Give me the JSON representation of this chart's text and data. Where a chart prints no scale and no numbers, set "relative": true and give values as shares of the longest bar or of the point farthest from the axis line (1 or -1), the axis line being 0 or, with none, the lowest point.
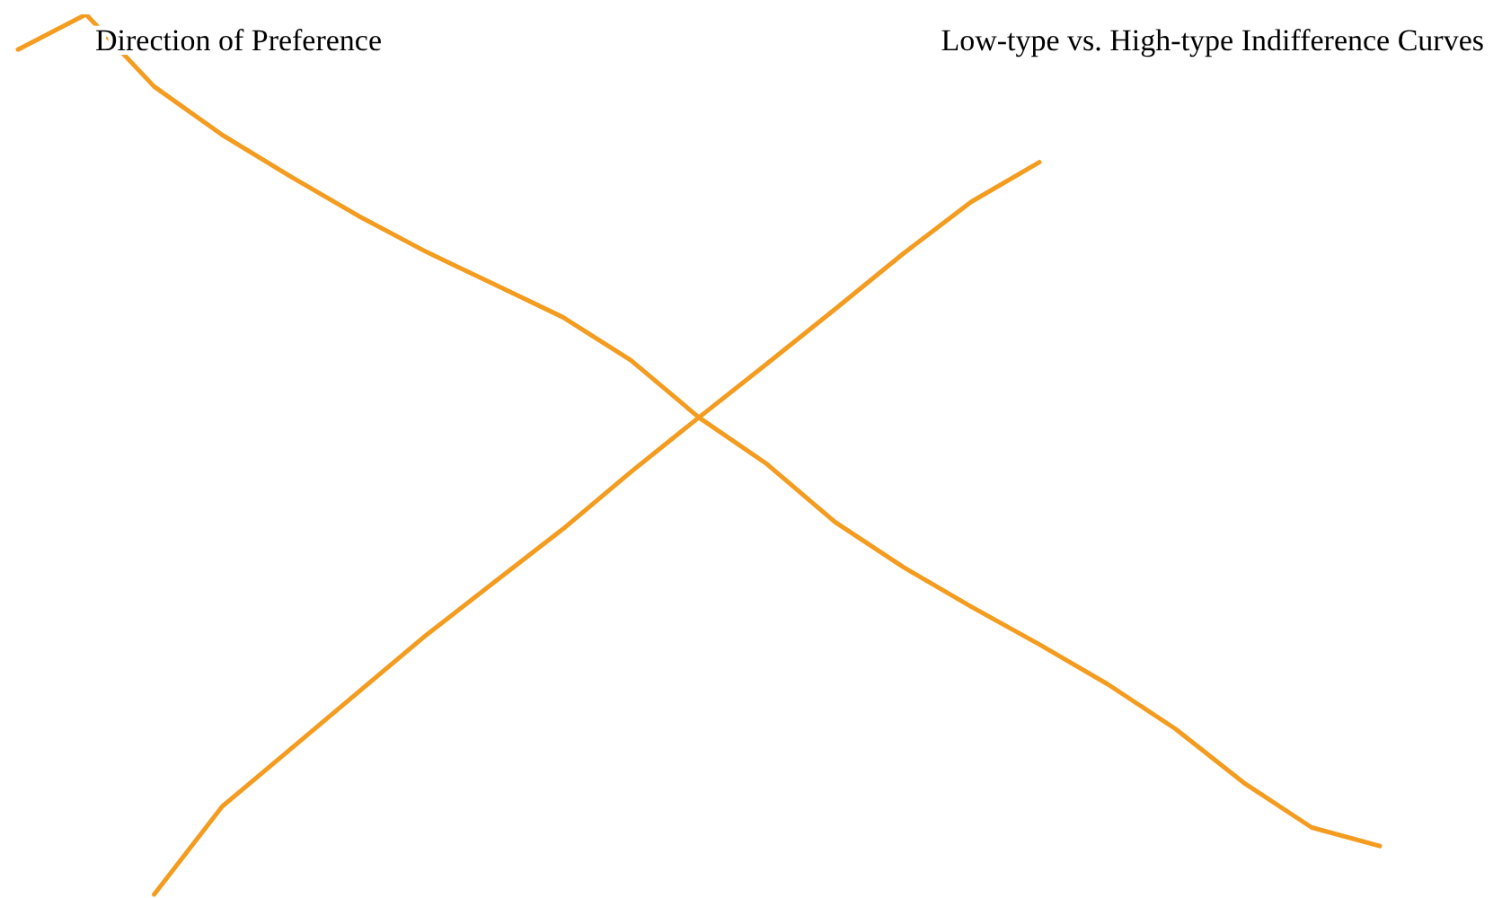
{
  "chart_data": {
    "type": "line",
    "relative": true,
    "title": "Low-type vs. High-type Indifference Curves",
    "annotations": [
      "Direction of Preference"
    ],
    "categories": [
      null,
      null,
      null,
      null,
      null,
      null,
      null,
      null,
      null,
      null,
      null,
      null,
      null,
      null,
      null,
      null,
      null,
      null,
      null,
      null,
      null
    ],
    "series": [
      {
        "color": "#f39c1f",
        "values": [
          0.96,
          1.0,
          0.918,
          0.863,
          0.816,
          0.771,
          0.73,
          0.693,
          0.656,
          0.607,
          0.542,
          0.489,
          0.423,
          0.372,
          0.327,
          0.284,
          0.239,
          0.188,
          0.127,
          0.076,
          0.055
        ]
      },
      {
        "color": "#f39c1f",
        "values": [
          null,
          null,
          0,
          0.1,
          0.165,
          0.23,
          0.295,
          0.355,
          0.415,
          0.48,
          0.542,
          0.603,
          0.665,
          0.728,
          0.787,
          0.832,
          null,
          null,
          null,
          null,
          null
        ]
      }
    ]
  }
}
